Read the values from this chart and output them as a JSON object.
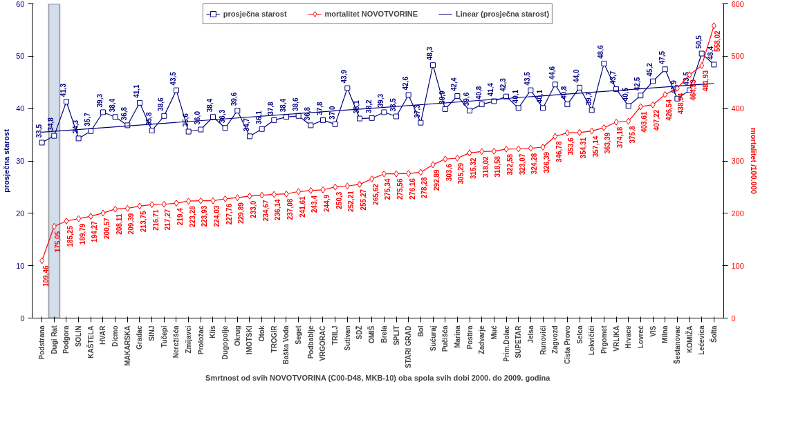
{
  "chart_data": {
    "type": "line",
    "xlabel": "Smrtnost od svih NOVOTVORINA (C00-D48, MKB-10) oba spola svih dobi 2000. do 2009. godina",
    "ylabel": "prosječna starost",
    "y2label": "mortalitet /100.000",
    "categories": [
      "Podstrana",
      "Dugi Rat",
      "Podgora",
      "SOLIN",
      "KAŠTELA",
      "HVAR",
      "Dicmo",
      "MAKARSKA",
      "Gradac",
      "SINJ",
      "Tučepi",
      "Nerežišća",
      "Zmijavci",
      "Proložac",
      "Klis",
      "Dugopolje",
      "Okrug",
      "IMOTSKI",
      "Otok",
      "TROGIR",
      "Baška Voda",
      "Seget",
      "Podbablje",
      "VRGORAC",
      "TRILJ",
      "Sutivan",
      "SDŽ",
      "OMIŠ",
      "Brela",
      "SPLIT",
      "STARI GRAD",
      "Bol",
      "Sućuraj",
      "Pučišća",
      "Marina",
      "Postira",
      "Zadvarje",
      "Muć",
      "Prim.Dolac",
      "SUPETAR",
      "Jelsa",
      "Runovići",
      "Zagvozd",
      "Cista Provo",
      "Selca",
      "Lokvičići",
      "Prgomet",
      "VRLIKA",
      "Hrvace",
      "Lovreć",
      "VIS",
      "Milna",
      "Šestanovac",
      "KOMIŽA",
      "Lećevica",
      "Šolta"
    ],
    "series": [
      {
        "name": "prosječna starost",
        "color": "#000080",
        "marker": "square",
        "values": [
          33.5,
          34.8,
          41.3,
          34.3,
          35.7,
          39.3,
          38.4,
          36.8,
          41.1,
          35.8,
          38.6,
          43.5,
          35.6,
          36.0,
          38.4,
          36.3,
          39.6,
          34.7,
          36.1,
          37.8,
          38.4,
          38.6,
          36.8,
          37.8,
          37.0,
          43.9,
          38.1,
          38.2,
          39.3,
          38.5,
          42.6,
          37.3,
          48.3,
          39.9,
          42.4,
          39.6,
          40.8,
          41.4,
          42.3,
          40.1,
          43.5,
          40.1,
          44.6,
          40.8,
          44.0,
          39.7,
          48.6,
          43.7,
          40.5,
          42.5,
          45.2,
          47.5,
          41.9,
          43.5,
          50.5,
          48.4
        ],
        "value_labels": [
          "33,5",
          "34,8",
          "41,3",
          "34,3",
          "35,7",
          "39,3",
          "38,4",
          "36,8",
          "41,1",
          "35,8",
          "38,6",
          "43,5",
          "35,6",
          "36,0",
          "38,4",
          "36,3",
          "39,6",
          "34,7",
          "36,1",
          "37,8",
          "38,4",
          "38,6",
          "36,8",
          "37,8",
          "37,0",
          "43,9",
          "38,1",
          "38,2",
          "39,3",
          "38,5",
          "42,6",
          "37,3",
          "48,3",
          "39,9",
          "42,4",
          "39,6",
          "40,8",
          "41,4",
          "42,3",
          "40,1",
          "43,5",
          "40,1",
          "44,6",
          "40,8",
          "44,0",
          "39,7",
          "48,6",
          "43,7",
          "40,5",
          "42,5",
          "45,2",
          "47,5",
          "41,9",
          "43,5",
          "50,5",
          "48,4"
        ]
      },
      {
        "name": "mortalitet NOVOTVORINE",
        "color": "#ff0000",
        "marker": "diamond",
        "axis": "y2",
        "values": [
          109.46,
          175.05,
          185.25,
          189.79,
          194.27,
          200.57,
          208.11,
          209.39,
          213.75,
          216.71,
          217.27,
          219.4,
          223.28,
          223.93,
          224.03,
          227.76,
          229.89,
          233.0,
          234.67,
          236.14,
          237.08,
          241.61,
          243.4,
          244.9,
          250.3,
          252.21,
          255.27,
          265.62,
          275.34,
          275.56,
          276.16,
          278.28,
          292.89,
          303.6,
          305.29,
          315.32,
          318.02,
          318.58,
          322.58,
          323.07,
          324.28,
          326.39,
          346.78,
          353.6,
          354.31,
          357.14,
          363.39,
          374.18,
          375.8,
          403.61,
          407.22,
          426.54,
          438.94,
          464.53,
          481.93,
          558.02
        ],
        "value_labels": [
          "109,46",
          "175,05",
          "185,25",
          "189,79",
          "194,27",
          "200,57",
          "208,11",
          "209,39",
          "213,75",
          "216,71",
          "217,27",
          "219,4",
          "223,28",
          "223,93",
          "224,03",
          "227,76",
          "229,89",
          "233,0",
          "234,67",
          "236,14",
          "237,08",
          "241,61",
          "243,4",
          "244,9",
          "250,3",
          "252,21",
          "255,27",
          "265,62",
          "275,34",
          "275,56",
          "276,16",
          "278,28",
          "292,89",
          "303,6",
          "305,29",
          "315,32",
          "318,02",
          "318,58",
          "322,58",
          "323,07",
          "324,28",
          "326,39",
          "346,78",
          "353,6",
          "354,31",
          "357,14",
          "363,39",
          "374,18",
          "375,8",
          "403,61",
          "407,22",
          "426,54",
          "438,94",
          "464,53",
          "481,93",
          "558,02"
        ]
      },
      {
        "name": "Linear (prosječna starost)",
        "color": "#000080",
        "marker": "none",
        "x": [
          "Podstrana",
          "Šolta"
        ],
        "values": [
          35.5,
          44.8
        ]
      }
    ],
    "bands": [
      {
        "axis": "x",
        "from": "Dugi Rat",
        "to": "Dugi Rat",
        "color": "#c8d4e6"
      }
    ],
    "ylim": [
      0,
      60
    ],
    "yticks": [
      0,
      10,
      20,
      30,
      40,
      50,
      60
    ],
    "y2lim": [
      0,
      600
    ],
    "y2ticks": [
      0,
      100,
      200,
      300,
      400,
      500,
      600
    ],
    "grid": false,
    "legend": "top"
  }
}
